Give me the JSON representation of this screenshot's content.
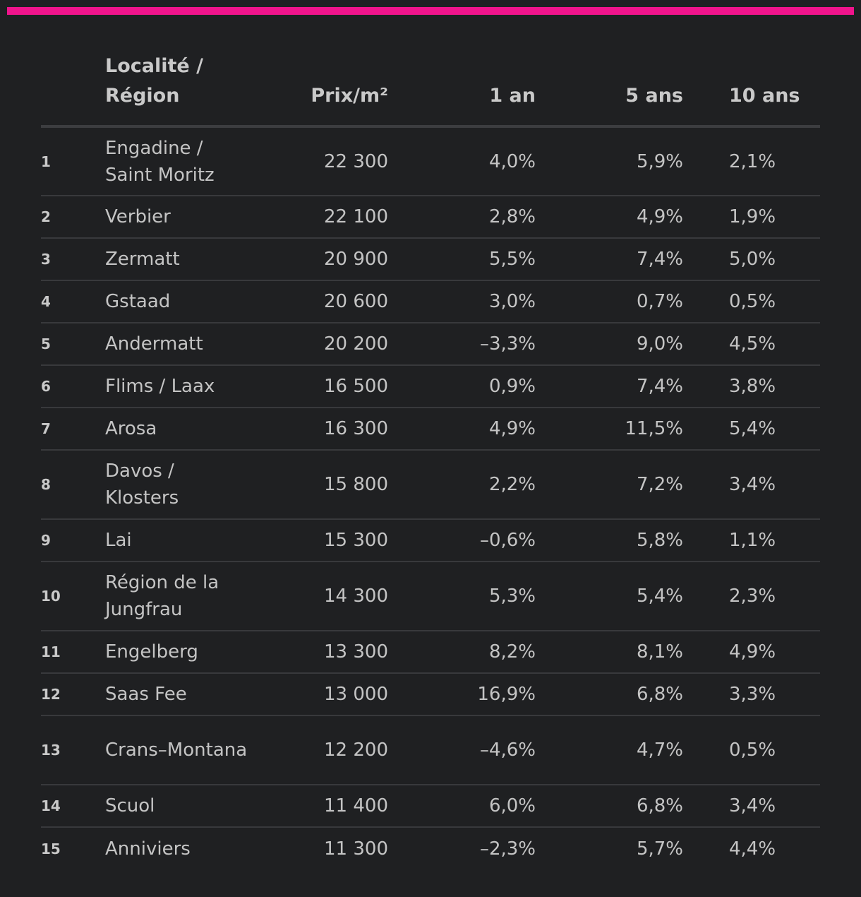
{
  "accent_color": "#f0148c",
  "table": {
    "headers": {
      "rank": "",
      "location": "Localité / Région",
      "price": "Prix/m²",
      "one_year": "1 an",
      "five_years": "5 ans",
      "ten_years": "10 ans"
    },
    "rows": [
      {
        "rank": "1",
        "location": "Engadine / Saint Moritz",
        "price": "22 300",
        "one_year": "4,0%",
        "five_years": "5,9%",
        "ten_years": "2,1%"
      },
      {
        "rank": "2",
        "location": "Verbier",
        "price": "22 100",
        "one_year": "2,8%",
        "five_years": "4,9%",
        "ten_years": "1,9%"
      },
      {
        "rank": "3",
        "location": "Zermatt",
        "price": "20 900",
        "one_year": "5,5%",
        "five_years": "7,4%",
        "ten_years": "5,0%"
      },
      {
        "rank": "4",
        "location": "Gstaad",
        "price": "20 600",
        "one_year": "3,0%",
        "five_years": "0,7%",
        "ten_years": "0,5%"
      },
      {
        "rank": "5",
        "location": "Andermatt",
        "price": "20 200",
        "one_year": "–3,3%",
        "five_years": "9,0%",
        "ten_years": "4,5%"
      },
      {
        "rank": "6",
        "location": "Flims / Laax",
        "price": "16 500",
        "one_year": "0,9%",
        "five_years": "7,4%",
        "ten_years": "3,8%"
      },
      {
        "rank": "7",
        "location": "Arosa",
        "price": "16 300",
        "one_year": "4,9%",
        "five_years": "11,5%",
        "ten_years": "5,4%"
      },
      {
        "rank": "8",
        "location": "Davos / Klosters",
        "price": "15 800",
        "one_year": "2,2%",
        "five_years": "7,2%",
        "ten_years": "3,4%"
      },
      {
        "rank": "9",
        "location": "Lai",
        "price": "15 300",
        "one_year": "–0,6%",
        "five_years": "5,8%",
        "ten_years": "1,1%"
      },
      {
        "rank": "10",
        "location": "Région de la Jungfrau",
        "price": "14 300",
        "one_year": "5,3%",
        "five_years": "5,4%",
        "ten_years": "2,3%"
      },
      {
        "rank": "11",
        "location": "Engelberg",
        "price": "13 300",
        "one_year": "8,2%",
        "five_years": "8,1%",
        "ten_years": "4,9%"
      },
      {
        "rank": "12",
        "location": "Saas Fee",
        "price": "13 000",
        "one_year": "16,9%",
        "five_years": "6,8%",
        "ten_years": "3,3%"
      },
      {
        "rank": "13",
        "location": "Crans–Montana",
        "price": "12 200",
        "one_year": "–4,6%",
        "five_years": "4,7%",
        "ten_years": "0,5%"
      },
      {
        "rank": "14",
        "location": "Scuol",
        "price": "11 400",
        "one_year": "6,0%",
        "five_years": "6,8%",
        "ten_years": "3,4%"
      },
      {
        "rank": "15",
        "location": "Anniviers",
        "price": "11 300",
        "one_year": "–2,3%",
        "five_years": "5,7%",
        "ten_years": "4,4%"
      }
    ]
  }
}
